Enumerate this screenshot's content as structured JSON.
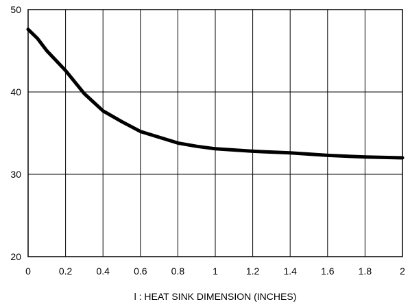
{
  "chart_data": {
    "type": "line",
    "title": "",
    "xlabel": "l : HEAT SINK DIMENSION (INCHES)",
    "ylabel": "",
    "xlim": [
      0,
      2
    ],
    "ylim": [
      20,
      50
    ],
    "grid": true,
    "xticks": [
      0,
      0.2,
      0.4,
      0.6,
      0.8,
      1,
      1.2,
      1.4,
      1.6,
      1.8,
      2
    ],
    "xtick_labels": [
      "0",
      "0.2",
      "0.4",
      "0.6",
      "0.8",
      "1",
      "1.2",
      "1.4",
      "1.6",
      "1.8",
      "2"
    ],
    "yticks": [
      20,
      30,
      40,
      50
    ],
    "ytick_labels": [
      "20",
      "30",
      "40",
      "50"
    ],
    "series": [
      {
        "color": "#000000",
        "x": [
          0,
          0.05,
          0.1,
          0.2,
          0.3,
          0.4,
          0.5,
          0.6,
          0.7,
          0.8,
          0.9,
          1.0,
          1.2,
          1.4,
          1.6,
          1.8,
          2.0
        ],
        "y": [
          47.6,
          46.5,
          45.0,
          42.6,
          39.8,
          37.7,
          36.4,
          35.2,
          34.5,
          33.8,
          33.4,
          33.1,
          32.8,
          32.6,
          32.3,
          32.1,
          32.0
        ]
      }
    ]
  }
}
